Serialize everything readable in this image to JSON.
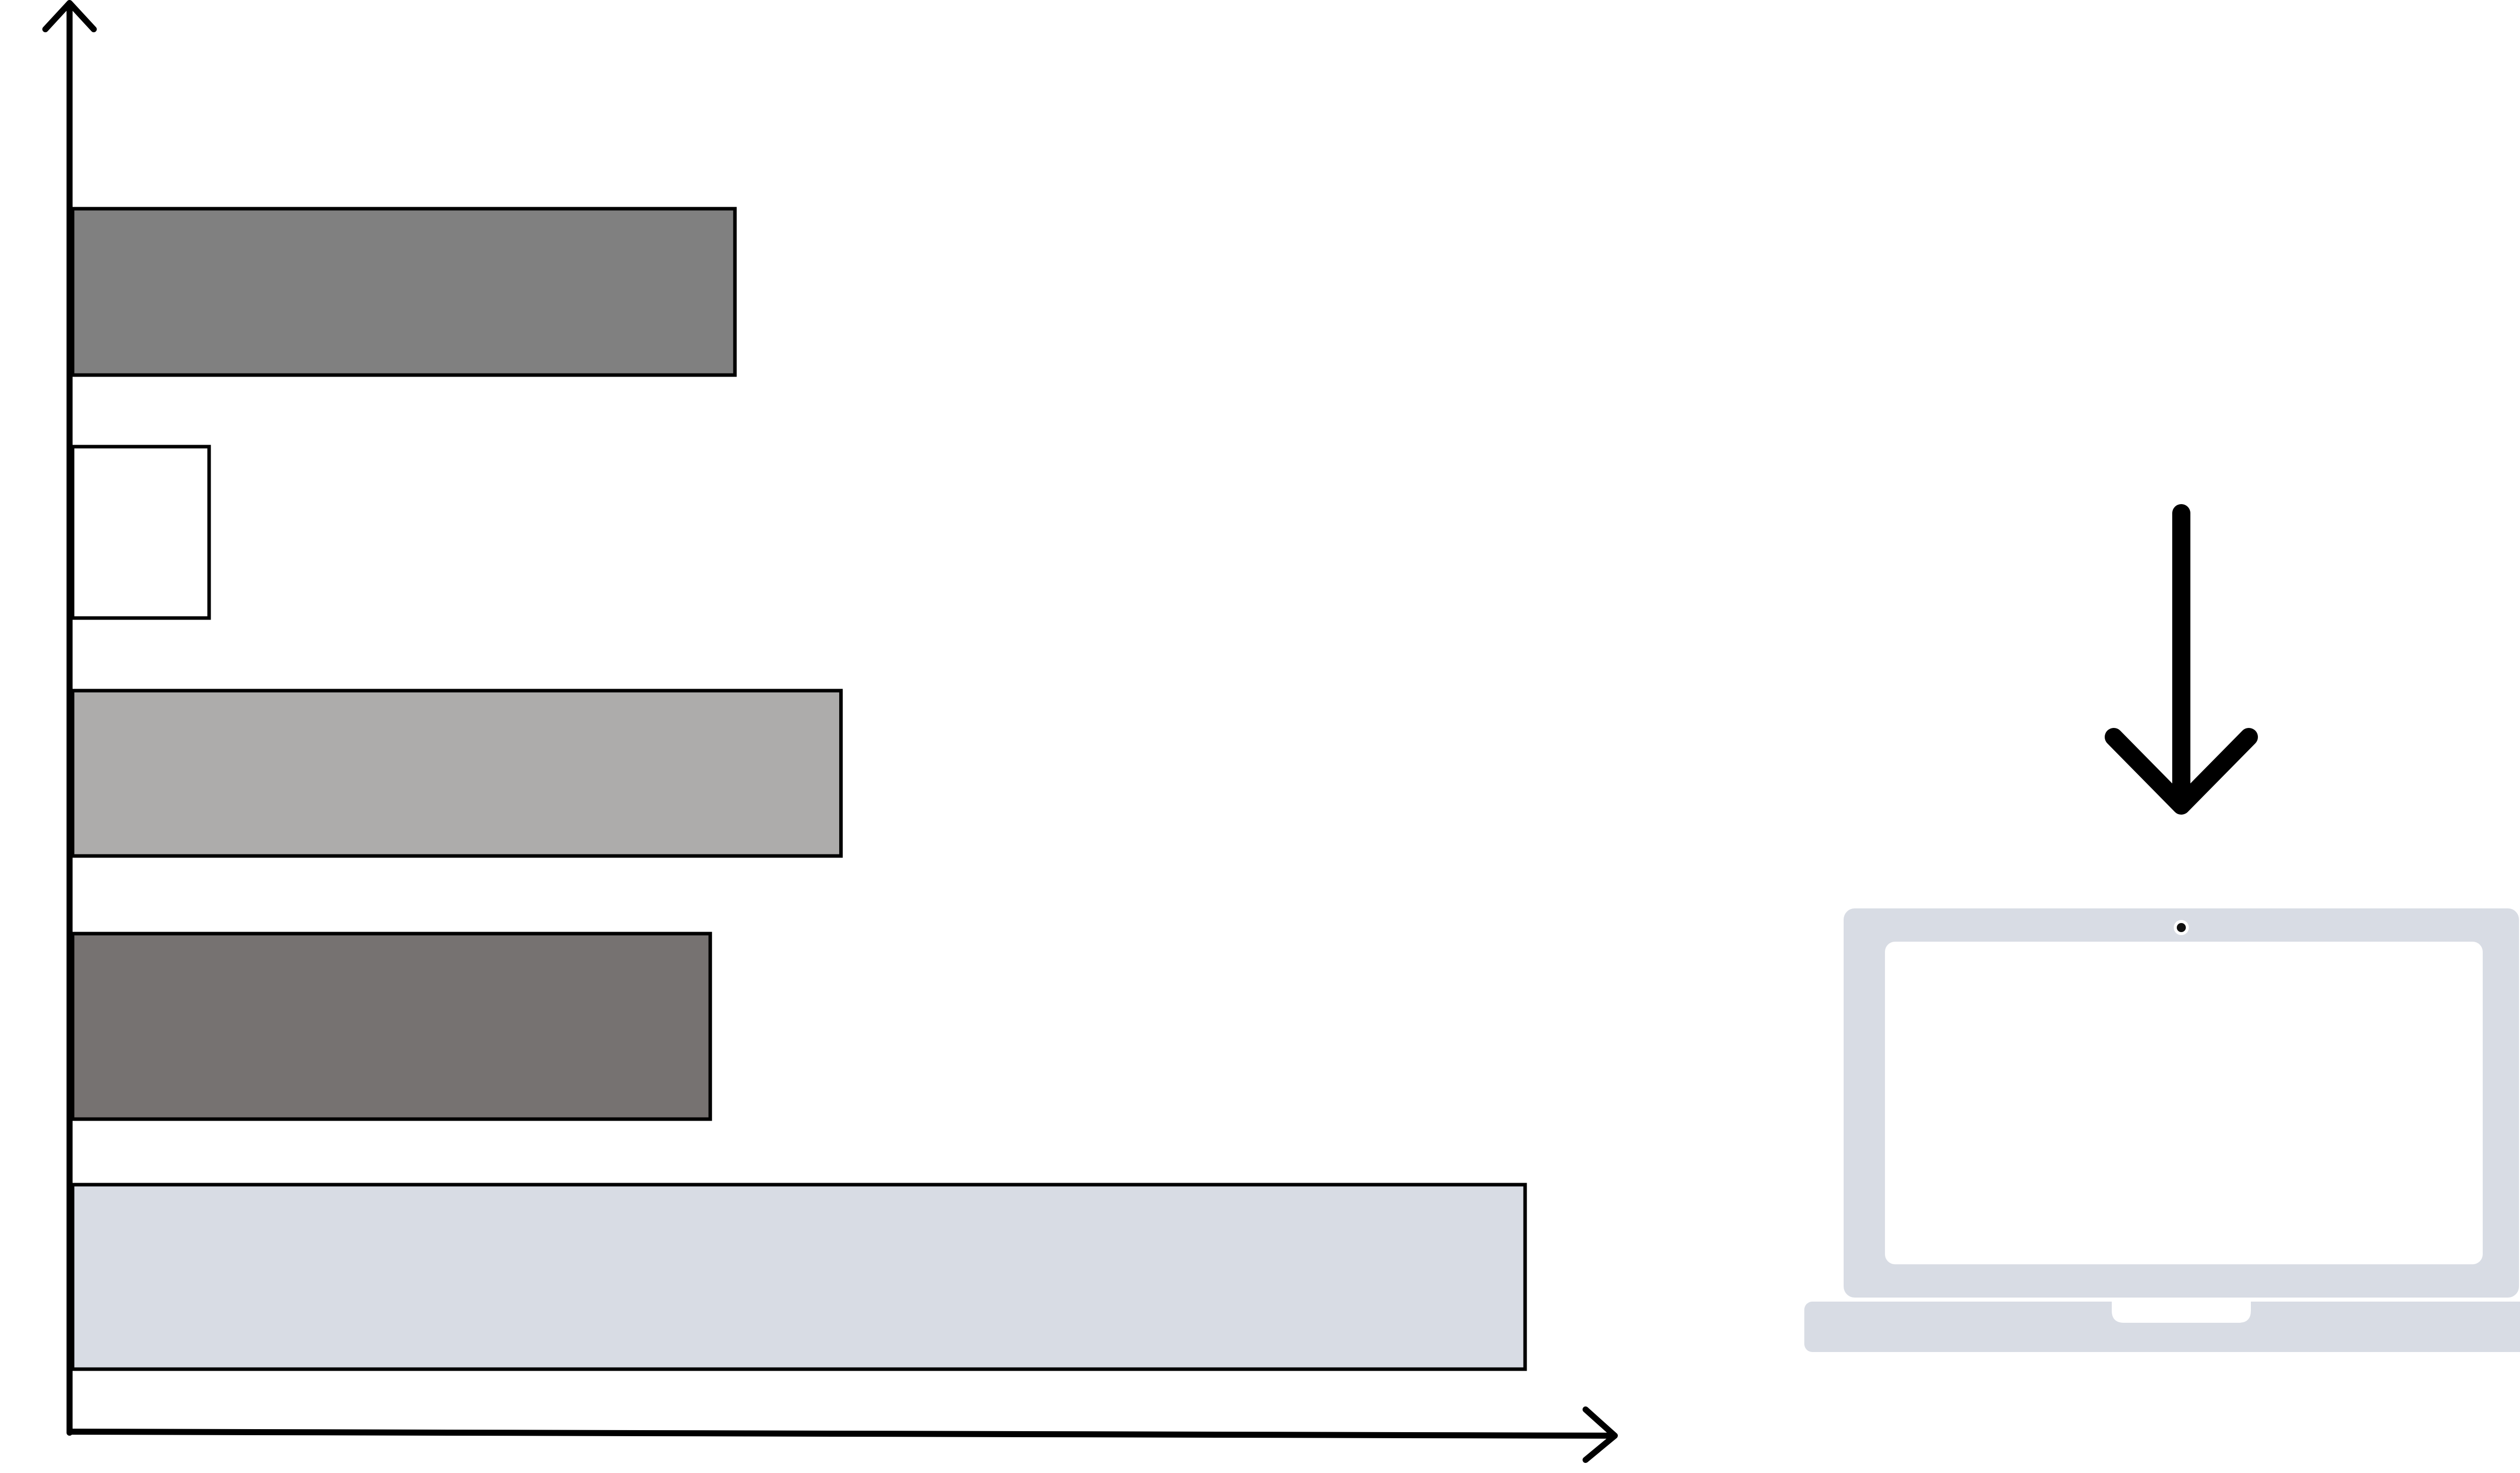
{
  "chart_data": {
    "type": "bar",
    "orientation": "horizontal",
    "title": "",
    "xlabel": "",
    "ylabel": "",
    "grid": false,
    "legend": "none",
    "xlim": [
      0,
      100
    ],
    "categories": [
      "",
      "",
      "",
      "",
      ""
    ],
    "values": [
      45.6,
      9.4,
      52.9,
      43.9,
      100
    ],
    "colors": [
      "#808080",
      "#ffffff",
      "#adacab",
      "#767271",
      "#d8dce4"
    ]
  },
  "illustration": {
    "arrow_icon": "arrow-down-icon",
    "device_icon": "laptop-icon",
    "arrow_color": "#000000",
    "device_color": "#d8dce4",
    "screen_color": "#ffffff"
  }
}
